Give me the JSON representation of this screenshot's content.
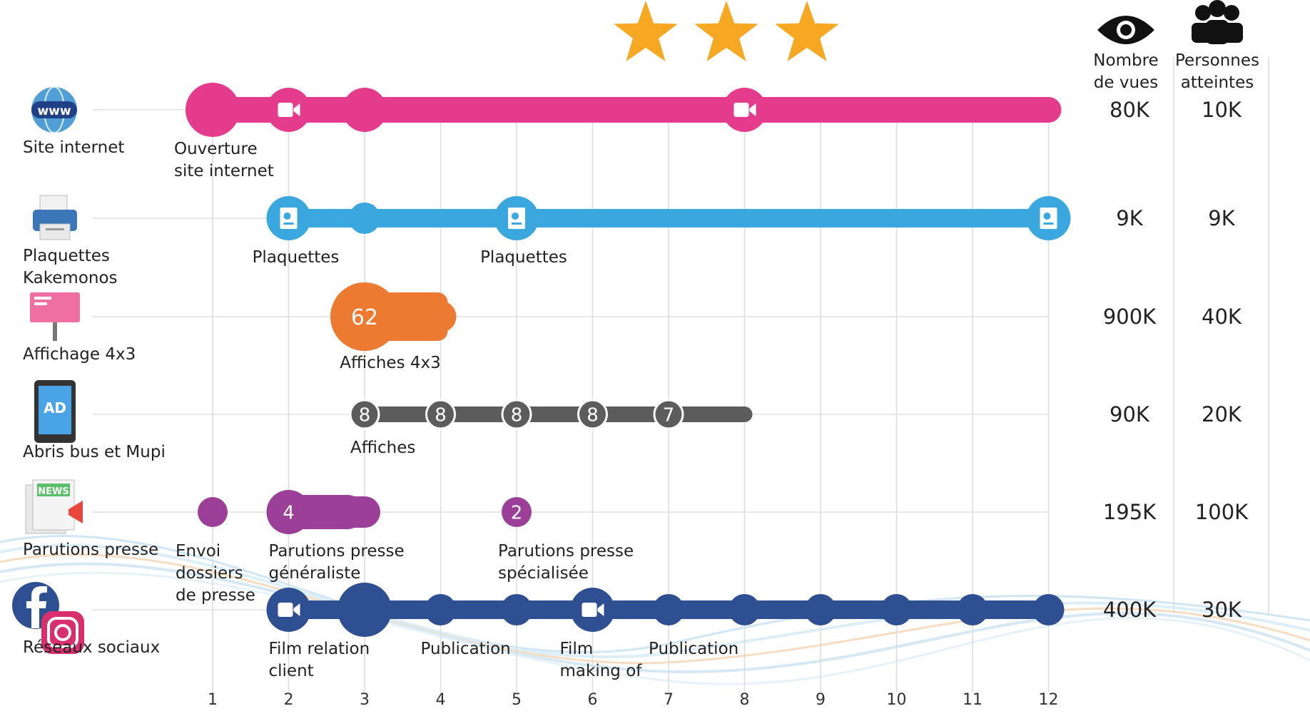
{
  "chart_data": {
    "type": "timeline",
    "x_ticks": [
      1,
      2,
      3,
      4,
      5,
      6,
      7,
      8,
      9,
      10,
      11,
      12
    ],
    "stars": 3,
    "header": {
      "views": [
        "Nombre",
        "de vues"
      ],
      "people": [
        "Personnes",
        "atteintes"
      ]
    },
    "channels": [
      {
        "id": "site",
        "label": [
          "Site internet"
        ],
        "icon": "globe-www-icon",
        "color": "#e43b8c",
        "bar": [
          1,
          12
        ],
        "views": "80K",
        "people": "10K",
        "points": [
          {
            "x": 1,
            "kind": "big"
          },
          {
            "x": 2,
            "kind": "video"
          },
          {
            "x": 3,
            "kind": "dot"
          },
          {
            "x": 8,
            "kind": "video"
          }
        ],
        "labels": [
          {
            "x": 1,
            "lines": [
              "Ouverture",
              "site internet"
            ]
          }
        ]
      },
      {
        "id": "plaquettes",
        "label": [
          "Plaquettes",
          "Kakemonos"
        ],
        "icon": "printer-icon",
        "color": "#3aa8df",
        "bar": [
          2,
          12
        ],
        "views": "9K",
        "people": "9K",
        "points": [
          {
            "x": 2,
            "kind": "brochure"
          },
          {
            "x": 3,
            "kind": "dot"
          },
          {
            "x": 5,
            "kind": "brochure"
          },
          {
            "x": 12,
            "kind": "brochure"
          }
        ],
        "labels": [
          {
            "x": 2,
            "lines": [
              "Plaquettes"
            ]
          },
          {
            "x": 5,
            "lines": [
              "Plaquettes"
            ]
          }
        ]
      },
      {
        "id": "affichage",
        "label": [
          "Affichage 4x3"
        ],
        "icon": "billboard-icon",
        "color": "#ec7a31",
        "bar": [
          3,
          4
        ],
        "views": "900K",
        "people": "40K",
        "points": [
          {
            "x": 3,
            "kind": "count",
            "value": "62"
          }
        ],
        "labels": [
          {
            "x": 3,
            "lines": [
              "Affiches 4x3"
            ]
          }
        ]
      },
      {
        "id": "abris",
        "label": [
          "Abris bus et Mupi"
        ],
        "icon": "bus-shelter-icon",
        "color": "#5c5c5c",
        "bar": [
          3,
          8
        ],
        "views": "90K",
        "people": "20K",
        "points": [
          {
            "x": 3,
            "kind": "count",
            "value": "8"
          },
          {
            "x": 4,
            "kind": "count",
            "value": "8"
          },
          {
            "x": 5,
            "kind": "count",
            "value": "8"
          },
          {
            "x": 6,
            "kind": "count",
            "value": "8"
          },
          {
            "x": 7,
            "kind": "count",
            "value": "7"
          }
        ],
        "labels": [
          {
            "x": 3,
            "lines": [
              "Affiches"
            ]
          }
        ]
      },
      {
        "id": "presse",
        "label": [
          "Parutions presse"
        ],
        "icon": "newspaper-icon",
        "color": "#9b3f98",
        "bar": [
          2,
          3
        ],
        "views": "195K",
        "people": "100K",
        "points": [
          {
            "x": 1,
            "kind": "dot"
          },
          {
            "x": 2,
            "kind": "count",
            "value": "4"
          },
          {
            "x": 5,
            "kind": "count",
            "value": "2"
          }
        ],
        "labels": [
          {
            "x": 1,
            "lines": [
              "Envoi",
              "dossiers",
              "de presse"
            ]
          },
          {
            "x": 2,
            "lines": [
              "Parutions presse",
              "généraliste"
            ]
          },
          {
            "x": 5,
            "lines": [
              "Parutions presse",
              "spécialisée"
            ]
          }
        ]
      },
      {
        "id": "sociaux",
        "label": [
          "Réseaux sociaux"
        ],
        "icon": "facebook-instagram-icon",
        "color": "#2f4f93",
        "bar": [
          2,
          12
        ],
        "views": "400K",
        "people": "30K",
        "points": [
          {
            "x": 2,
            "kind": "video"
          },
          {
            "x": 3,
            "kind": "big"
          },
          {
            "x": 4,
            "kind": "dot"
          },
          {
            "x": 5,
            "kind": "dot"
          },
          {
            "x": 6,
            "kind": "video"
          },
          {
            "x": 7,
            "kind": "dot"
          },
          {
            "x": 8,
            "kind": "dot"
          },
          {
            "x": 9,
            "kind": "dot"
          },
          {
            "x": 10,
            "kind": "dot"
          },
          {
            "x": 11,
            "kind": "dot"
          },
          {
            "x": 12,
            "kind": "dot"
          }
        ],
        "labels": [
          {
            "x": 2,
            "lines": [
              "Film relation",
              "client"
            ]
          },
          {
            "x": 4,
            "lines": [
              "Publication"
            ]
          },
          {
            "x": 6,
            "lines": [
              "Film",
              "making of"
            ]
          },
          {
            "x": 7,
            "lines": [
              "Publication"
            ]
          }
        ]
      }
    ]
  }
}
